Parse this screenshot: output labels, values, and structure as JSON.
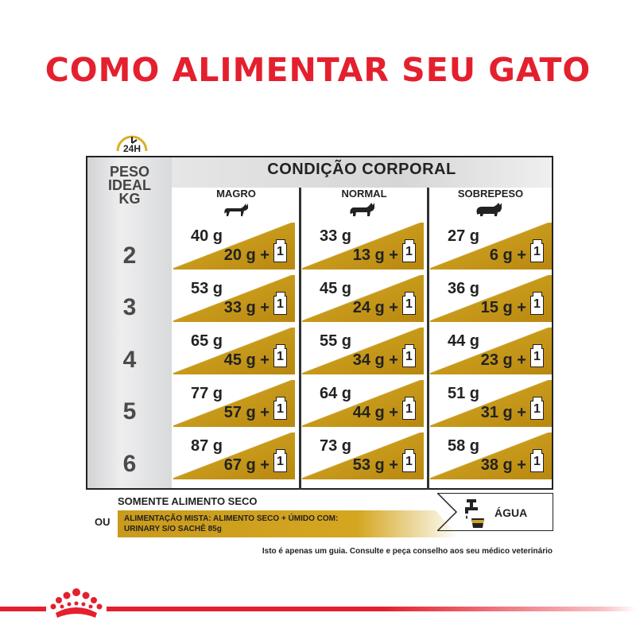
{
  "title": "COMO ALIMENTAR SEU GATO",
  "clock_label": "24H",
  "left_header": [
    "PESO",
    "IDEAL",
    "KG"
  ],
  "body_condition_header": "CONDIÇÃO CORPORAL",
  "columns": [
    "MAGRO",
    "NORMAL",
    "SOBREPESO"
  ],
  "rows": [
    {
      "weight": "2",
      "cells": [
        {
          "dry": "40 g",
          "mixed": "20 g +",
          "pouch": "1"
        },
        {
          "dry": "33 g",
          "mixed": "13 g +",
          "pouch": "1"
        },
        {
          "dry": "27 g",
          "mixed": "6 g +",
          "pouch": "1"
        }
      ]
    },
    {
      "weight": "3",
      "cells": [
        {
          "dry": "53 g",
          "mixed": "33 g +",
          "pouch": "1"
        },
        {
          "dry": "45 g",
          "mixed": "24 g +",
          "pouch": "1"
        },
        {
          "dry": "36 g",
          "mixed": "15 g +",
          "pouch": "1"
        }
      ]
    },
    {
      "weight": "4",
      "cells": [
        {
          "dry": "65 g",
          "mixed": "45 g +",
          "pouch": "1"
        },
        {
          "dry": "55 g",
          "mixed": "34 g +",
          "pouch": "1"
        },
        {
          "dry": "44 g",
          "mixed": "23 g +",
          "pouch": "1"
        }
      ]
    },
    {
      "weight": "5",
      "cells": [
        {
          "dry": "77 g",
          "mixed": "57 g +",
          "pouch": "1"
        },
        {
          "dry": "64 g",
          "mixed": "44 g +",
          "pouch": "1"
        },
        {
          "dry": "51 g",
          "mixed": "31 g +",
          "pouch": "1"
        }
      ]
    },
    {
      "weight": "6",
      "cells": [
        {
          "dry": "87 g",
          "mixed": "67 g +",
          "pouch": "1"
        },
        {
          "dry": "73 g",
          "mixed": "53 g +",
          "pouch": "1"
        },
        {
          "dry": "58 g",
          "mixed": "38 g +",
          "pouch": "1"
        }
      ]
    }
  ],
  "legend": {
    "dry_only": "SOMENTE ALIMENTO SECO",
    "or": "OU",
    "mixed_line1": "ALIMENTAÇÃO MISTA: ALIMENTO SECO + ÚMIDO COM:",
    "mixed_line2": "URINARY S/O SACHÊ 85g",
    "water": "ÁGUA"
  },
  "note": "Isto é apenas um guia. Consulte e peça conselho aos seu médico veterinário",
  "colors": {
    "title_red": "#e4202e",
    "gold": "#c89a1b"
  }
}
